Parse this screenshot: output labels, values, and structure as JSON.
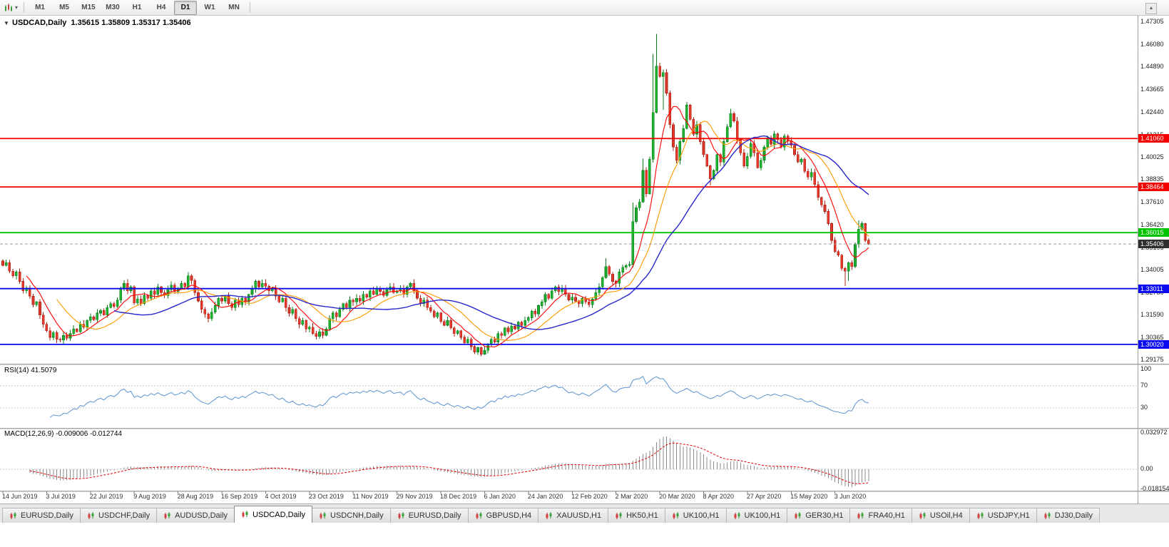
{
  "toolbar": {
    "timeframes": [
      "M1",
      "M5",
      "M15",
      "M30",
      "H1",
      "H4",
      "D1",
      "W1",
      "MN"
    ],
    "active_timeframe": "D1"
  },
  "chart": {
    "title": "USDCAD,Daily",
    "ohlc": "1.35615 1.35809 1.35317 1.35406"
  },
  "price_axis": {
    "ticks": [
      "1.47305",
      "1.46080",
      "1.44890",
      "1.43665",
      "1.42440",
      "1.41215",
      "1.40025",
      "1.38835",
      "1.37610",
      "1.36420",
      "1.35195",
      "1.34005",
      "1.32780",
      "1.31590",
      "1.30365",
      "1.29175"
    ],
    "current": "1.35406",
    "current_color": "#2e2e2e"
  },
  "levels": [
    {
      "label": "1.41060",
      "price": 1.4106,
      "color": "#f40000"
    },
    {
      "label": "1.38464",
      "price": 1.38464,
      "color": "#f40000"
    },
    {
      "label": "1.36015",
      "price": 1.36015,
      "color": "#00c400"
    },
    {
      "label": "1.33011",
      "price": 1.33011,
      "color": "#0a0af0"
    },
    {
      "label": "1.30020",
      "price": 1.3002,
      "color": "#0a0af0"
    }
  ],
  "rsi": {
    "label": "RSI(14)",
    "value": "41.5079",
    "period": 14,
    "axis": [
      "100",
      "70",
      "30"
    ],
    "line_color": "#5b94cf"
  },
  "macd": {
    "label": "MACD(12,26,9)",
    "values": "-0.009006 -0.012744",
    "fast": 12,
    "slow": 26,
    "signal": 9,
    "axis": [
      "0.032972",
      "0.00",
      "-0.018154"
    ],
    "hist_color": "#8c8c8c",
    "signal_color": "#e00000"
  },
  "dates": [
    "14 Jun 2019",
    "3 Jul 2019",
    "22 Jul 2019",
    "9 Aug 2019",
    "28 Aug 2019",
    "16 Sep 2019",
    "4 Oct 2019",
    "23 Oct 2019",
    "11 Nov 2019",
    "29 Nov 2019",
    "18 Dec 2019",
    "6 Jan 2020",
    "24 Jan 2020",
    "12 Feb 2020",
    "2 Mar 2020",
    "20 Mar 2020",
    "8 Apr 2020",
    "27 Apr 2020",
    "15 May 2020",
    "3 Jun 2020"
  ],
  "tabs": {
    "labels": [
      "EURUSD,Daily",
      "USDCHF,Daily",
      "AUDUSD,Daily",
      "USDCAD,Daily",
      "USDCNH,Daily",
      "EURUSD,Daily",
      "GBPUSD,H4",
      "XAUUSD,H1",
      "HK50,H1",
      "UK100,H1",
      "UK100,H1",
      "GER30,H1",
      "FRA40,H1",
      "USOil,H4",
      "USDJPY,H1",
      "DJ30,Daily"
    ],
    "active_index": 3
  },
  "chart_data": {
    "type": "candlestick",
    "symbol": "USDCAD",
    "timeframe": "Daily",
    "title": "USDCAD,Daily",
    "price_top": 1.47574,
    "price_bottom": 1.28983,
    "bars_per_date_tick": 13,
    "up_color": "#1db32e",
    "down_color": "#e5392b",
    "open_first": 1.345,
    "closes": [
      1.3425,
      1.344,
      1.3395,
      1.337,
      1.339,
      1.334,
      1.329,
      1.3305,
      1.326,
      1.3215,
      1.323,
      1.316,
      1.311,
      1.3075,
      1.304,
      1.3065,
      1.303,
      1.3025,
      1.305,
      1.3035,
      1.306,
      1.3085,
      1.307,
      1.311,
      1.3095,
      1.313,
      1.315,
      1.3135,
      1.317,
      1.3185,
      1.316,
      1.32,
      1.322,
      1.3205,
      1.324,
      1.3305,
      1.333,
      1.329,
      1.331,
      1.3225,
      1.3245,
      1.322,
      1.3265,
      1.325,
      1.329,
      1.327,
      1.331,
      1.328,
      1.3265,
      1.3295,
      1.332,
      1.3285,
      1.33,
      1.333,
      1.331,
      1.337,
      1.3345,
      1.328,
      1.3235,
      1.319,
      1.3165,
      1.314,
      1.3175,
      1.321,
      1.325,
      1.3235,
      1.326,
      1.322,
      1.32,
      1.324,
      1.3215,
      1.325,
      1.323,
      1.327,
      1.33,
      1.334,
      1.331,
      1.333,
      1.3315,
      1.329,
      1.3305,
      1.326,
      1.323,
      1.325,
      1.32,
      1.317,
      1.319,
      1.314,
      1.311,
      1.313,
      1.3085,
      1.3095,
      1.306,
      1.3045,
      1.307,
      1.305,
      1.3085,
      1.314,
      1.317,
      1.315,
      1.319,
      1.322,
      1.32,
      1.324,
      1.323,
      1.325,
      1.3235,
      1.327,
      1.3255,
      1.329,
      1.327,
      1.33,
      1.3285,
      1.3265,
      1.3295,
      1.331,
      1.328,
      1.329,
      1.33,
      1.327,
      1.331,
      1.333,
      1.329,
      1.325,
      1.322,
      1.324,
      1.32,
      1.318,
      1.315,
      1.317,
      1.3125,
      1.3105,
      1.313,
      1.309,
      1.306,
      1.3075,
      1.304,
      1.301,
      1.303,
      1.299,
      1.296,
      1.2985,
      1.295,
      1.297,
      1.3005,
      1.303,
      1.3015,
      1.306,
      1.305,
      1.309,
      1.307,
      1.31,
      1.3085,
      1.312,
      1.3105,
      1.313,
      1.3145,
      1.318,
      1.3165,
      1.321,
      1.323,
      1.327,
      1.325,
      1.329,
      1.331,
      1.3285,
      1.33,
      1.327,
      1.324,
      1.3255,
      1.3235,
      1.322,
      1.325,
      1.323,
      1.3215,
      1.3245,
      1.328,
      1.331,
      1.336,
      1.342,
      1.338,
      1.334,
      1.333,
      1.339,
      1.3415,
      1.3425,
      1.343,
      1.366,
      1.3735,
      1.3765,
      1.3935,
      1.381,
      1.3995,
      1.4245,
      1.4495,
      1.444,
      1.446,
      1.435,
      1.418,
      1.406,
      1.399,
      1.409,
      1.416,
      1.4285,
      1.421,
      1.413,
      1.418,
      1.409,
      1.402,
      1.396,
      1.389,
      1.3935,
      1.402,
      1.398,
      1.409,
      1.417,
      1.424,
      1.42,
      1.41,
      1.403,
      1.396,
      1.401,
      1.408,
      1.403,
      1.395,
      1.399,
      1.406,
      1.411,
      1.4075,
      1.413,
      1.41,
      1.406,
      1.412,
      1.4095,
      1.407,
      1.402,
      1.398,
      1.3995,
      1.393,
      1.39,
      1.3925,
      1.386,
      1.379,
      1.375,
      1.3715,
      1.365,
      1.356,
      1.35,
      1.348,
      1.341,
      1.3395,
      1.344,
      1.342,
      1.354,
      1.362,
      1.365,
      1.356,
      1.35406
    ],
    "wick_overrides": {
      "0": {
        "h": 1.3458
      },
      "55": {
        "h": 1.3385
      },
      "141": {
        "l": 1.2948
      },
      "143": {
        "l": 1.2953
      },
      "179": {
        "h": 1.3465
      },
      "187": {
        "h": 1.3762
      },
      "190": {
        "h": 1.3998
      },
      "193": {
        "h": 1.456,
        "l": 1.415
      },
      "194": {
        "h": 1.4668,
        "l": 1.43
      },
      "196": {
        "l": 1.426
      },
      "210": {
        "l": 1.3855
      },
      "216": {
        "h": 1.4265
      },
      "250": {
        "l": 1.3315
      },
      "251": {
        "l": 1.3342
      },
      "254": {
        "h": 1.3668
      }
    },
    "moving_averages": [
      {
        "period": 8,
        "color": "#ff0000"
      },
      {
        "period": 17,
        "color": "#ff9900"
      },
      {
        "period": 34,
        "color": "#2626cc"
      }
    ]
  }
}
